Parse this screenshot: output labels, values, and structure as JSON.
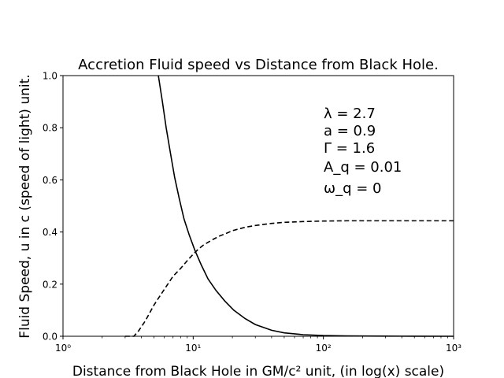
{
  "chart_data": {
    "type": "line",
    "title": "Accretion Fluid speed vs Distance from Black Hole.",
    "xlabel": "Distance from Black Hole in GM/c² unit, (in log(x) scale)",
    "ylabel": "Fluid Speed, u in c (speed of light) unit.",
    "xscale": "log",
    "xlim": [
      1,
      1000
    ],
    "ylim": [
      0,
      1
    ],
    "x_ticks": [
      {
        "value": 1,
        "label": "10⁰"
      },
      {
        "value": 10,
        "label": "10¹"
      },
      {
        "value": 100,
        "label": "10²"
      },
      {
        "value": 1000,
        "label": "10³"
      }
    ],
    "y_ticks": [
      {
        "value": 0.0,
        "label": "0.0"
      },
      {
        "value": 0.2,
        "label": "0.2"
      },
      {
        "value": 0.4,
        "label": "0.4"
      },
      {
        "value": 0.6,
        "label": "0.6"
      },
      {
        "value": 0.8,
        "label": "0.8"
      },
      {
        "value": 1.0,
        "label": "1.0"
      }
    ],
    "grid": false,
    "annotations": [
      "λ = 2.7",
      "a = 0.9",
      "Γ = 1.6",
      "A_q = 0.01",
      "ω_q = 0"
    ],
    "series": [
      {
        "style": "solid",
        "color": "#000000",
        "x": [
          5.4,
          5.8,
          6.2,
          6.7,
          7.2,
          7.8,
          8.5,
          9.3,
          10.3,
          11.5,
          13,
          15,
          17.5,
          20.5,
          25,
          30,
          40,
          50,
          70,
          100,
          150,
          200,
          300,
          500,
          1000
        ],
        "y": [
          1.0,
          0.9,
          0.8,
          0.7,
          0.61,
          0.53,
          0.45,
          0.39,
          0.33,
          0.275,
          0.22,
          0.175,
          0.135,
          0.1,
          0.068,
          0.045,
          0.023,
          0.013,
          0.006,
          0.003,
          0.0015,
          0.001,
          0.0005,
          0.0002,
          0.0
        ]
      },
      {
        "style": "dashed",
        "color": "#000000",
        "x": [
          3.0,
          3.5,
          3.8,
          4.3,
          5,
          6,
          7,
          8,
          9,
          10,
          11,
          12,
          14,
          16,
          18,
          20,
          25,
          30,
          40,
          50,
          70,
          100,
          150,
          200,
          300,
          500,
          1000
        ],
        "y": [
          0.0,
          0.0,
          0.02,
          0.06,
          0.12,
          0.18,
          0.23,
          0.26,
          0.29,
          0.315,
          0.335,
          0.35,
          0.37,
          0.385,
          0.395,
          0.405,
          0.418,
          0.425,
          0.433,
          0.437,
          0.44,
          0.442,
          0.443,
          0.443,
          0.443,
          0.443,
          0.443
        ]
      }
    ]
  }
}
